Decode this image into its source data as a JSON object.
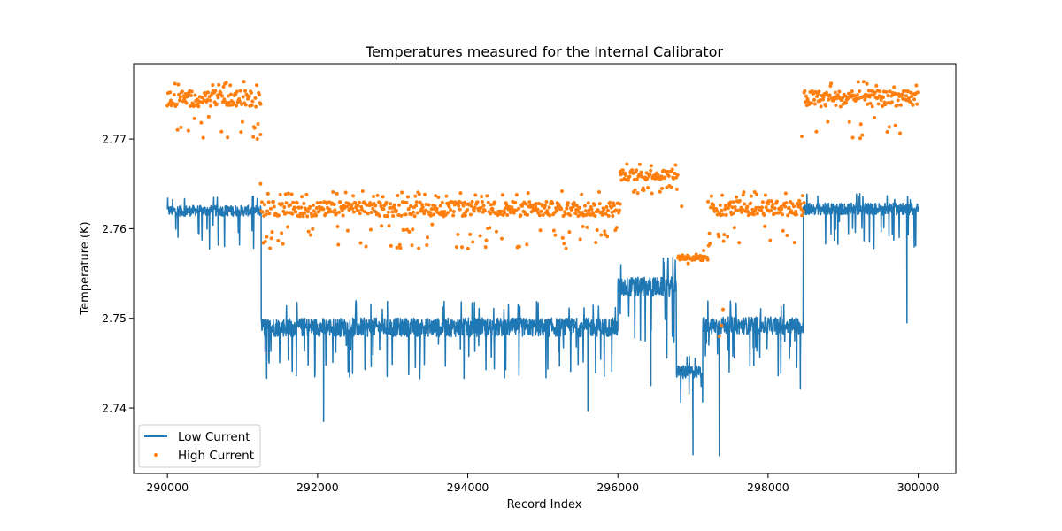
{
  "chart_data": {
    "type": "scatter",
    "title": "Temperatures measured for the Internal Calibrator",
    "xlabel": "Record Index",
    "ylabel": "Temperature (K)",
    "xlim": [
      289550,
      300500
    ],
    "ylim": [
      2.7327,
      2.7784
    ],
    "xticks": [
      290000,
      292000,
      294000,
      296000,
      298000,
      300000
    ],
    "xtick_labels": [
      "290000",
      "292000",
      "294000",
      "296000",
      "298000",
      "300000"
    ],
    "yticks": [
      2.74,
      2.75,
      2.76,
      2.77
    ],
    "ytick_labels": [
      "2.74",
      "2.75",
      "2.76",
      "2.77"
    ],
    "grid": false,
    "legend_position": "lower-left",
    "colors": {
      "low": "#1f77b4",
      "high": "#ff7f0e"
    },
    "series": [
      {
        "name": "Low Current",
        "style": "line",
        "segments": [
          {
            "x": [
              290000,
              291250
            ],
            "base": 2.762,
            "upper": 2.7629,
            "lower": 2.7607,
            "dip_prob": 0.05,
            "dip_depth": 0.003
          },
          {
            "x": [
              291250,
              296000
            ],
            "base": 2.749,
            "upper": 2.751,
            "lower": 2.7472,
            "dip_prob": 0.05,
            "dip_depth": 0.004
          },
          {
            "x": [
              296000,
              296780
            ],
            "base": 2.7535,
            "upper": 2.7555,
            "lower": 2.7515,
            "dip_prob": 0.06,
            "dip_depth": 0.006
          },
          {
            "x": [
              296780,
              297130
            ],
            "base": 2.744,
            "upper": 2.7455,
            "lower": 2.7428,
            "dip_prob": 0.05,
            "dip_depth": 0.004
          },
          {
            "x": [
              297130,
              298470
            ],
            "base": 2.7492,
            "upper": 2.751,
            "lower": 2.7475,
            "dip_prob": 0.05,
            "dip_depth": 0.004
          },
          {
            "x": [
              298470,
              300000
            ],
            "base": 2.7622,
            "upper": 2.7632,
            "lower": 2.7608,
            "dip_prob": 0.05,
            "dip_depth": 0.003
          }
        ],
        "extremes": [
          {
            "x": 291300,
            "y": 2.7463
          },
          {
            "x": 292080,
            "y": 2.7385
          },
          {
            "x": 295600,
            "y": 2.7397
          },
          {
            "x": 296440,
            "y": 2.7425
          },
          {
            "x": 297000,
            "y": 2.7348
          },
          {
            "x": 297350,
            "y": 2.7347
          },
          {
            "x": 298430,
            "y": 2.7421
          },
          {
            "x": 299850,
            "y": 2.7495
          }
        ]
      },
      {
        "name": "High Current",
        "style": "dots",
        "segments": [
          {
            "x": [
              290000,
              291250
            ],
            "base": 2.7745,
            "upper": 2.7758,
            "lower": 2.7725,
            "dip_prob": 0.12,
            "dip_depth": 0.0025
          },
          {
            "x": [
              291250,
              296030
            ],
            "base": 2.7622,
            "upper": 2.7635,
            "lower": 2.7605,
            "dip_prob": 0.12,
            "dip_depth": 0.0028
          },
          {
            "x": [
              296030,
              296800
            ],
            "base": 2.766,
            "upper": 2.767,
            "lower": 2.7648,
            "dip_prob": 0.1,
            "dip_depth": 0.001
          },
          {
            "x": [
              296800,
              297200
            ],
            "base": 2.7568,
            "upper": 2.7575,
            "lower": 2.7562,
            "dip_prob": 0.05,
            "dip_depth": 0.002
          },
          {
            "x": [
              297200,
              298480
            ],
            "base": 2.7623,
            "upper": 2.7635,
            "lower": 2.7605,
            "dip_prob": 0.12,
            "dip_depth": 0.0025
          },
          {
            "x": [
              298480,
              300000
            ],
            "base": 2.7745,
            "upper": 2.7758,
            "lower": 2.7725,
            "dip_prob": 0.12,
            "dip_depth": 0.0025
          }
        ],
        "extremes": [
          {
            "x": 291240,
            "y": 2.7705
          },
          {
            "x": 291240,
            "y": 2.765
          },
          {
            "x": 296850,
            "y": 2.7625
          },
          {
            "x": 297350,
            "y": 2.748
          },
          {
            "x": 297380,
            "y": 2.7492
          },
          {
            "x": 297400,
            "y": 2.751
          },
          {
            "x": 298450,
            "y": 2.7703
          }
        ]
      }
    ]
  }
}
